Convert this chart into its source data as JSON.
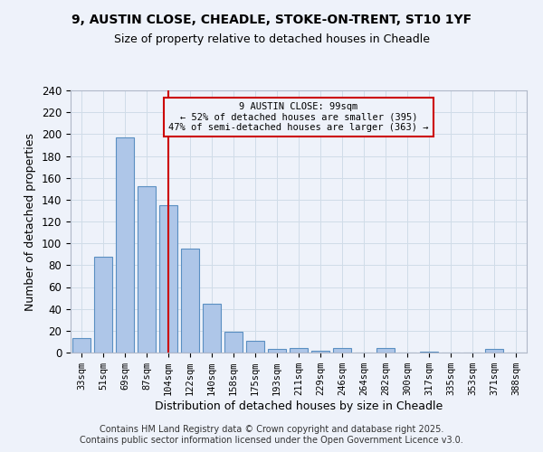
{
  "title_line1": "9, AUSTIN CLOSE, CHEADLE, STOKE-ON-TRENT, ST10 1YF",
  "title_line2": "Size of property relative to detached houses in Cheadle",
  "categories": [
    "33sqm",
    "51sqm",
    "69sqm",
    "87sqm",
    "104sqm",
    "122sqm",
    "140sqm",
    "158sqm",
    "175sqm",
    "193sqm",
    "211sqm",
    "229sqm",
    "246sqm",
    "264sqm",
    "282sqm",
    "300sqm",
    "317sqm",
    "335sqm",
    "353sqm",
    "371sqm",
    "388sqm"
  ],
  "values": [
    13,
    88,
    197,
    152,
    135,
    95,
    45,
    19,
    11,
    3,
    4,
    2,
    4,
    0,
    4,
    0,
    1,
    0,
    0,
    3,
    0
  ],
  "bar_color": "#aec6e8",
  "bar_edge_color": "#5a8fc2",
  "bar_edge_width": 0.8,
  "vline_x_index": 4,
  "vline_color": "#cc0000",
  "annotation_line1": "9 AUSTIN CLOSE: 99sqm",
  "annotation_line2": "← 52% of detached houses are smaller (395)",
  "annotation_line3": "47% of semi-detached houses are larger (363) →",
  "annotation_box_edge_color": "#cc0000",
  "xlabel": "Distribution of detached houses by size in Cheadle",
  "ylabel": "Number of detached properties",
  "ylim": [
    0,
    240
  ],
  "yticks": [
    0,
    20,
    40,
    60,
    80,
    100,
    120,
    140,
    160,
    180,
    200,
    220,
    240
  ],
  "grid_color": "#d0dce8",
  "background_color": "#eef2fa",
  "footer_line1": "Contains HM Land Registry data © Crown copyright and database right 2025.",
  "footer_line2": "Contains public sector information licensed under the Open Government Licence v3.0.",
  "footer_fontsize": 7.0,
  "title_fontsize": 10,
  "subtitle_fontsize": 9
}
